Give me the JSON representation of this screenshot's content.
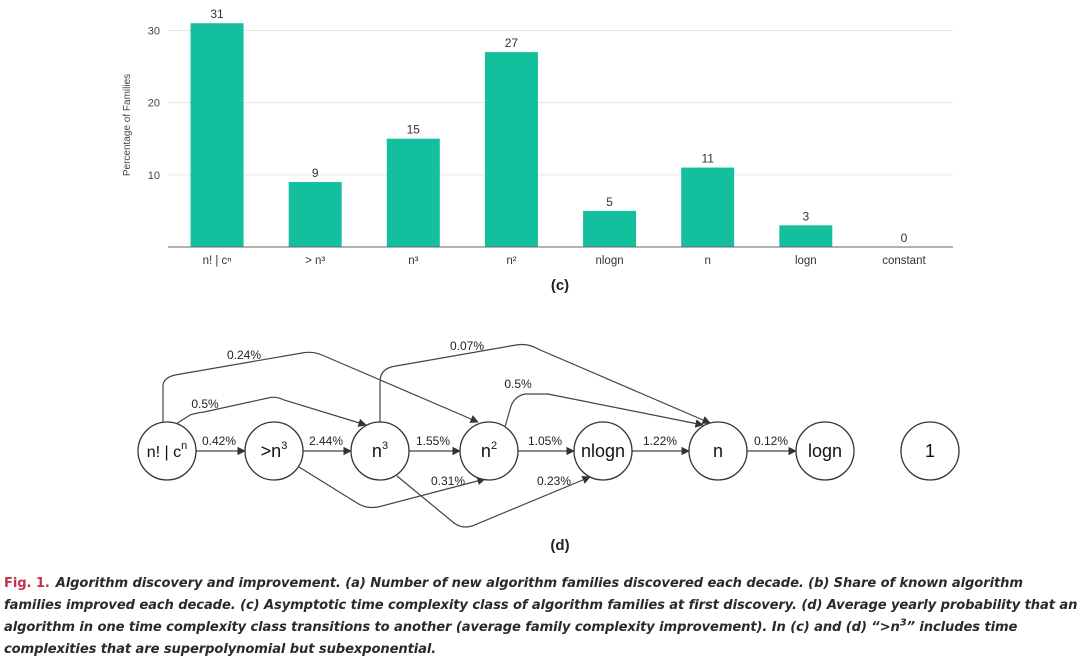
{
  "chart_data": {
    "type": "bar",
    "title": "",
    "xlabel": "",
    "ylabel": "Percentage of Families",
    "ylim": [
      0,
      32
    ],
    "yticks": [
      10,
      20,
      30
    ],
    "grid": true,
    "color": "#14bf9e",
    "categories": [
      "n! | cⁿ",
      "> n³",
      "n³",
      "n²",
      "nlogn",
      "n",
      "logn",
      "constant"
    ],
    "values": [
      31,
      9,
      15,
      27,
      5,
      11,
      3,
      0
    ],
    "value_labels": [
      "31",
      "9",
      "15",
      "27",
      "5",
      "11",
      "3",
      "0"
    ],
    "panel_label": "(c)"
  },
  "graph": {
    "panel_label": "(d)",
    "nodes": [
      {
        "id": "nfact",
        "label": "n! | c",
        "sup": "n"
      },
      {
        "id": "gt3",
        "label": ">n",
        "sup": "3"
      },
      {
        "id": "n3",
        "label": "n",
        "sup": "3"
      },
      {
        "id": "n2",
        "label": "n",
        "sup": "2"
      },
      {
        "id": "nlogn",
        "label": "nlogn",
        "sup": ""
      },
      {
        "id": "n",
        "label": "n",
        "sup": ""
      },
      {
        "id": "logn",
        "label": "logn",
        "sup": ""
      },
      {
        "id": "const",
        "label": "1",
        "sup": ""
      }
    ],
    "edges": [
      {
        "from": "nfact",
        "to": "gt3",
        "label": "0.42%"
      },
      {
        "from": "gt3",
        "to": "n3",
        "label": "2.44%"
      },
      {
        "from": "n3",
        "to": "n2",
        "label": "1.55%"
      },
      {
        "from": "n2",
        "to": "nlogn",
        "label": "1.05%"
      },
      {
        "from": "nlogn",
        "to": "n",
        "label": "1.22%"
      },
      {
        "from": "n",
        "to": "logn",
        "label": "0.12%"
      },
      {
        "from": "nfact",
        "to": "n2",
        "label": "0.24%"
      },
      {
        "from": "nfact",
        "to": "n3",
        "label": "0.5%"
      },
      {
        "from": "n3",
        "to": "n",
        "label": "0.07%"
      },
      {
        "from": "n2",
        "to": "n",
        "label": "0.5%"
      },
      {
        "from": "gt3",
        "to": "n2",
        "label": "0.31%"
      },
      {
        "from": "n3",
        "to": "nlogn",
        "label": "0.23%"
      }
    ]
  },
  "caption": {
    "fig_label": "Fig. 1.",
    "text_before": "Algorithm discovery and improvement. (a) Number of new algorithm families discovered each decade. (b) Share of known algorithm families improved each decade. (c) Asymptotic time complexity class of algorithm families at first discovery. (d) Average yearly probability that an algorithm in one time complexity class transitions to another (average family complexity improvement). In (c) and (d) “>n",
    "text_sup": "3",
    "text_after": "” includes time complexities that are superpolynomial but subexponential."
  }
}
